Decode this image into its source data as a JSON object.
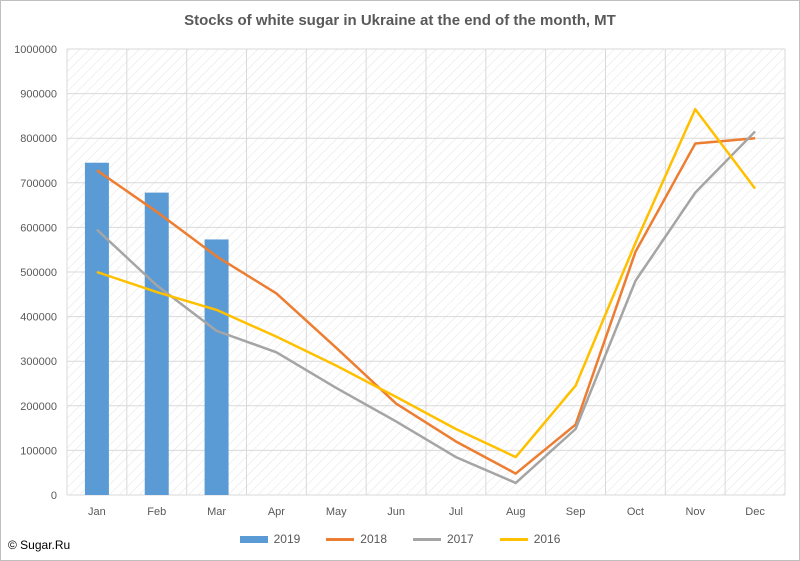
{
  "chart_data": {
    "type": "bar+line",
    "title": "Stocks of white sugar in Ukraine at the end of the month, MT",
    "categories": [
      "Jan",
      "Feb",
      "Mar",
      "Apr",
      "May",
      "Jun",
      "Jul",
      "Aug",
      "Sep",
      "Oct",
      "Nov",
      "Dec"
    ],
    "ylim": [
      0,
      1000000
    ],
    "yticks": [
      0,
      100000,
      200000,
      300000,
      400000,
      500000,
      600000,
      700000,
      800000,
      900000,
      1000000
    ],
    "grid": true,
    "legend_position": "bottom",
    "bar_series": [
      {
        "name": "2019",
        "color": "#5b9bd5",
        "values": [
          745000,
          678000,
          573000
        ]
      }
    ],
    "line_series": [
      {
        "name": "2018",
        "color": "#ed7d31",
        "values": [
          728000,
          635000,
          535000,
          452000,
          330000,
          205000,
          120000,
          48000,
          158000,
          545000,
          788000,
          800000
        ]
      },
      {
        "name": "2017",
        "color": "#a5a5a5",
        "values": [
          595000,
          470000,
          368000,
          320000,
          240000,
          165000,
          85000,
          27000,
          148000,
          480000,
          678000,
          815000
        ]
      },
      {
        "name": "2016",
        "color": "#ffc000",
        "values": [
          500000,
          455000,
          415000,
          355000,
          290000,
          220000,
          148000,
          85000,
          245000,
          565000,
          865000,
          687000
        ]
      }
    ]
  },
  "legend": {
    "items": [
      "2019",
      "2018",
      "2017",
      "2016"
    ]
  },
  "credit": "© Sugar.Ru"
}
